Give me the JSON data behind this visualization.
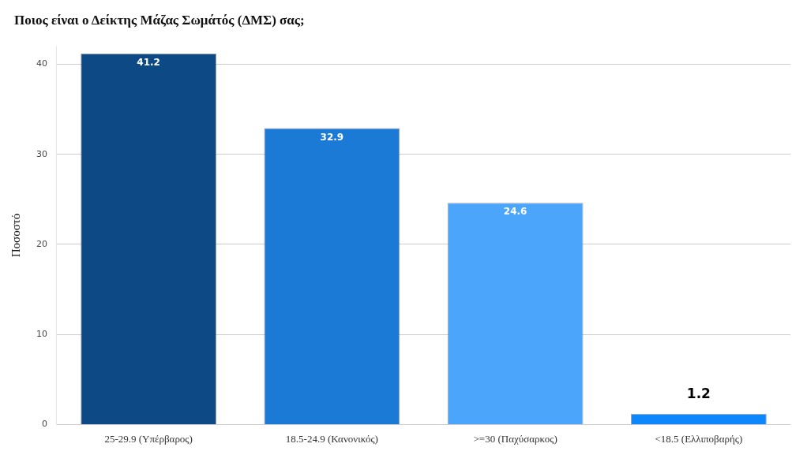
{
  "chart_data": {
    "type": "bar",
    "title": "Ποιος είναι ο Δείκτης Μάζας Σωμάτός (ΔΜΣ) σας;",
    "ylabel": "Ποσοστό",
    "categories": [
      "25-29.9 (Υπέρβαρος)",
      "18.5-24.9 (Κανονικός)",
      ">=30 (Παχύσαρκος)",
      "<18.5 (Ελλιποβαρής)"
    ],
    "values": [
      41.2,
      32.9,
      24.6,
      1.2
    ],
    "colors": [
      "#0d4a85",
      "#1a7ad6",
      "#4aa5fb",
      "#0d87fb"
    ],
    "ylim": [
      0,
      42
    ],
    "yticks": [
      0,
      10,
      20,
      30,
      40
    ],
    "grid": "y",
    "data_labels": true,
    "legend": false
  }
}
